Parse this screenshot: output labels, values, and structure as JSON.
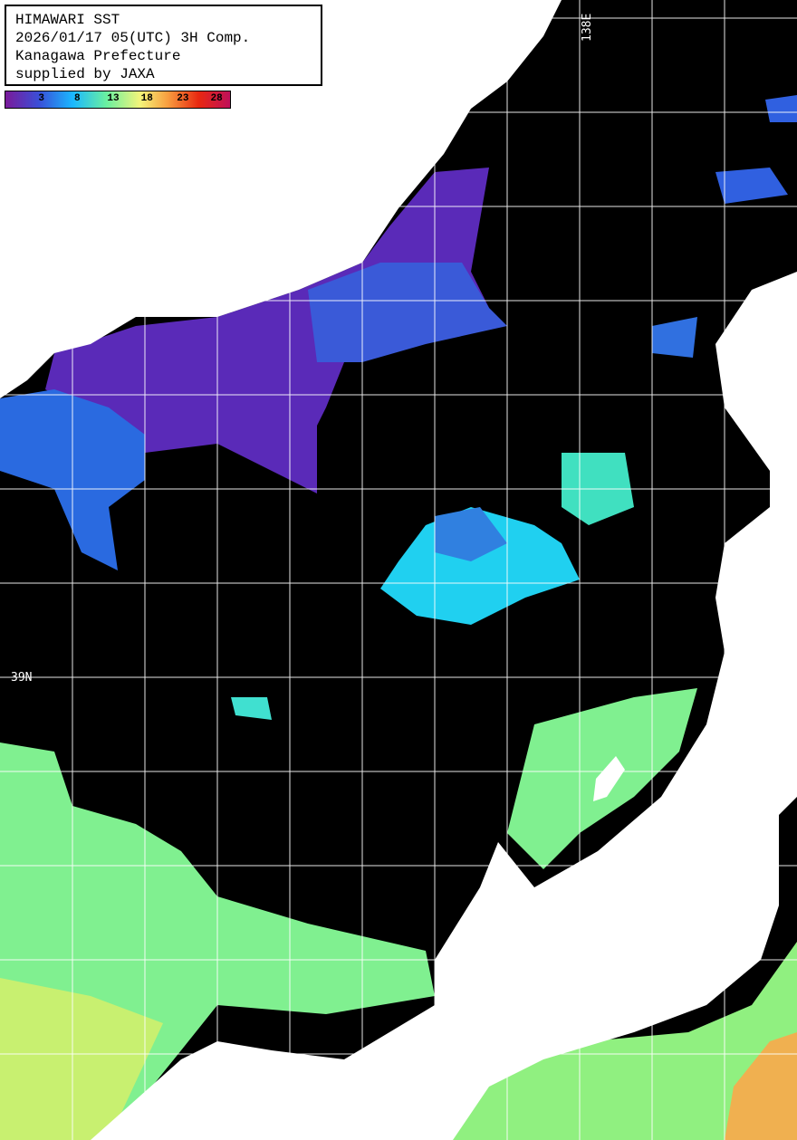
{
  "header": {
    "lines": [
      "HIMAWARI SST",
      "2026/01/17 05(UTC) 3H Comp.",
      "Kanagawa Prefecture",
      "supplied by JAXA"
    ]
  },
  "colorbar": {
    "ticks": [
      "3",
      "8",
      "13",
      "18",
      "23",
      "28"
    ],
    "colors": [
      "#7a1a9a",
      "#3a4fd8",
      "#1ab8ff",
      "#6af0a0",
      "#f4f47a",
      "#f8a040",
      "#e82810",
      "#c0105a"
    ]
  },
  "grid_labels": {
    "longitude": "138E",
    "latitude": "39N"
  },
  "colors": {
    "land": "#ffffff",
    "no_data": "#000000",
    "grid": "#ffffff"
  }
}
